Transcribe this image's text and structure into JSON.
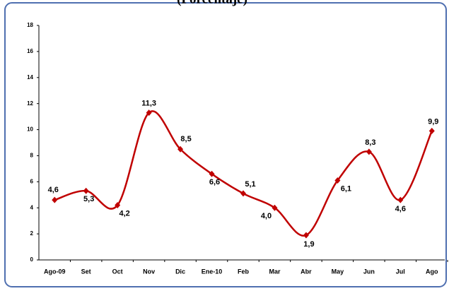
{
  "chart_data": {
    "type": "line",
    "title": "(Porcentaje)",
    "categories": [
      "Ago-09",
      "Set",
      "Oct",
      "Nov",
      "Dic",
      "Ene-10",
      "Feb",
      "Mar",
      "Abr",
      "May",
      "Jun",
      "Jul",
      "Ago"
    ],
    "series": [
      {
        "color": "#c00000",
        "values": [
          4.6,
          5.3,
          4.2,
          11.3,
          8.5,
          6.6,
          5.1,
          4.0,
          1.9,
          6.1,
          8.3,
          4.6,
          9.9
        ],
        "value_labels": [
          "4,6",
          "5,3",
          "4,2",
          "11,3",
          "8,5",
          "6,6",
          "5,1",
          "4,0",
          "1,9",
          "6,1",
          "8,3",
          "4,6",
          "9,9"
        ]
      }
    ],
    "ylim": [
      0,
      18
    ],
    "yticks": [
      0,
      2,
      4,
      6,
      8,
      10,
      12,
      14,
      16,
      18
    ],
    "smooth": true
  }
}
